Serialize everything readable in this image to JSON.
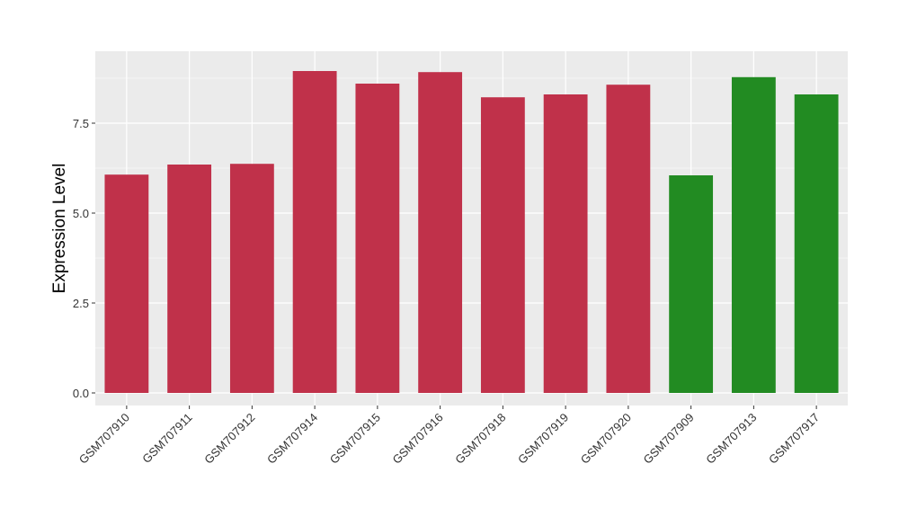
{
  "chart_data": {
    "type": "bar",
    "title": "",
    "xlabel": "",
    "ylabel": "Expression Level",
    "ylim": [
      -0.35,
      9.5
    ],
    "yticks": [
      0.0,
      2.5,
      5.0,
      7.5
    ],
    "ytick_labels": [
      "0.0",
      "2.5",
      "5.0",
      "7.5"
    ],
    "grid": true,
    "legend": "none",
    "categories": [
      "GSM707910",
      "GSM707911",
      "GSM707912",
      "GSM707914",
      "GSM707915",
      "GSM707916",
      "GSM707918",
      "GSM707919",
      "GSM707920",
      "GSM707909",
      "GSM707913",
      "GSM707917"
    ],
    "values": [
      6.07,
      6.35,
      6.37,
      8.95,
      8.6,
      8.92,
      8.22,
      8.3,
      8.57,
      6.05,
      8.78,
      8.3
    ],
    "groups": [
      "a",
      "a",
      "a",
      "a",
      "a",
      "a",
      "a",
      "a",
      "a",
      "b",
      "b",
      "b"
    ],
    "colors": {
      "a": "#C0314A",
      "b": "#228B22"
    },
    "panel_background": "#EBEBEB",
    "gridline_color": "#FFFFFF"
  }
}
